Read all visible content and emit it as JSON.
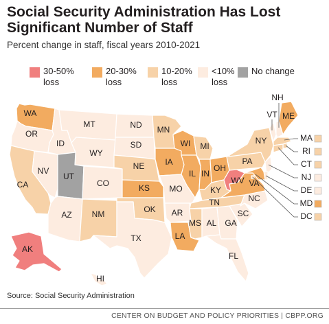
{
  "title": "Social Security Administration Has Lost Significant Number of Staff",
  "subtitle": "Percent change in staff, fiscal years 2010-2021",
  "colors": {
    "loss_30_50": "#f07f7e",
    "loss_20_30": "#f2ab60",
    "loss_10_20": "#f7d2a8",
    "loss_under_10": "#fdece0",
    "no_change": "#a2a2a2"
  },
  "legend": [
    {
      "label": "30-50%\nloss",
      "color": "#f07f7e"
    },
    {
      "label": "20-30%\nloss",
      "color": "#f2ab60"
    },
    {
      "label": "10-20%\nloss",
      "color": "#f7d2a8"
    },
    {
      "label": "<10%\nloss",
      "color": "#fdece0"
    },
    {
      "label": "No change",
      "color": "#a2a2a2"
    }
  ],
  "states": {
    "WA": {
      "name": "WA",
      "category": "20-30%"
    },
    "OR": {
      "name": "OR",
      "category": "<10%"
    },
    "CA": {
      "name": "CA",
      "category": "10-20%"
    },
    "NV": {
      "name": "NV",
      "category": "<10%"
    },
    "ID": {
      "name": "ID",
      "category": "<10%"
    },
    "MT": {
      "name": "MT",
      "category": "<10%"
    },
    "WY": {
      "name": "WY",
      "category": "<10%"
    },
    "UT": {
      "name": "UT",
      "category": "No change"
    },
    "AZ": {
      "name": "AZ",
      "category": "<10%"
    },
    "CO": {
      "name": "CO",
      "category": "<10%"
    },
    "NM": {
      "name": "NM",
      "category": "10-20%"
    },
    "ND": {
      "name": "ND",
      "category": "<10%"
    },
    "SD": {
      "name": "SD",
      "category": "<10%"
    },
    "NE": {
      "name": "NE",
      "category": "10-20%"
    },
    "KS": {
      "name": "KS",
      "category": "20-30%"
    },
    "OK": {
      "name": "OK",
      "category": "10-20%"
    },
    "TX": {
      "name": "TX",
      "category": "<10%"
    },
    "MN": {
      "name": "MN",
      "category": "10-20%"
    },
    "IA": {
      "name": "IA",
      "category": "20-30%"
    },
    "MO": {
      "name": "MO",
      "category": "<10%"
    },
    "AR": {
      "name": "AR",
      "category": "<10%"
    },
    "LA": {
      "name": "LA",
      "category": "20-30%"
    },
    "WI": {
      "name": "WI",
      "category": "20-30%"
    },
    "IL": {
      "name": "IL",
      "category": "20-30%"
    },
    "MI": {
      "name": "MI",
      "category": "10-20%"
    },
    "IN": {
      "name": "IN",
      "category": "20-30%"
    },
    "OH": {
      "name": "OH",
      "category": "20-30%"
    },
    "KY": {
      "name": "KY",
      "category": "10-20%"
    },
    "TN": {
      "name": "TN",
      "category": "10-20%"
    },
    "MS": {
      "name": "MS",
      "category": "10-20%"
    },
    "AL": {
      "name": "AL",
      "category": "<10%"
    },
    "GA": {
      "name": "GA",
      "category": "<10%"
    },
    "FL": {
      "name": "FL",
      "category": "<10%"
    },
    "SC": {
      "name": "SC",
      "category": "<10%"
    },
    "NC": {
      "name": "NC",
      "category": "<10%"
    },
    "VA": {
      "name": "VA",
      "category": "20-30%"
    },
    "WV": {
      "name": "WV",
      "category": "30-50%"
    },
    "PA": {
      "name": "PA",
      "category": "10-20%"
    },
    "NY": {
      "name": "NY",
      "category": "10-20%"
    },
    "VT": {
      "name": "VT",
      "category": "<10%"
    },
    "NH": {
      "name": "NH",
      "category": "<10%"
    },
    "ME": {
      "name": "ME",
      "category": "20-30%"
    },
    "MA": {
      "name": "MA",
      "category": "10-20%"
    },
    "RI": {
      "name": "RI",
      "category": "10-20%"
    },
    "CT": {
      "name": "CT",
      "category": "10-20%"
    },
    "NJ": {
      "name": "NJ",
      "category": "<10%"
    },
    "DE": {
      "name": "DE",
      "category": "<10%"
    },
    "MD": {
      "name": "MD",
      "category": "20-30%"
    },
    "DC": {
      "name": "DC",
      "category": "10-20%"
    },
    "AK": {
      "name": "AK",
      "category": "30-50%"
    },
    "HI": {
      "name": "HI",
      "category": "<10%"
    }
  },
  "source": "Source: Social Security Administration",
  "footer": "CENTER ON BUDGET AND POLICY PRIORITIES | CBPP.ORG"
}
